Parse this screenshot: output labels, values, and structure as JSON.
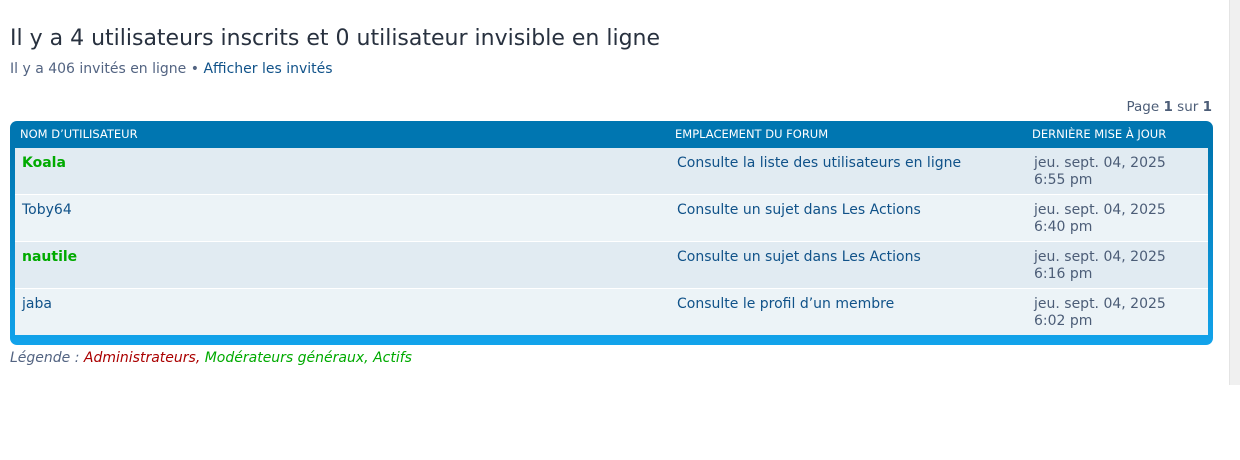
{
  "title": "Il y a 4 utilisateurs inscrits et 0 utilisateur invisible en ligne",
  "guests_text": "Il y a 406 invités en ligne",
  "separator": "•",
  "show_guests_link": "Afficher les invités",
  "pagination": {
    "prefix": "Page",
    "current": "1",
    "sep": "sur",
    "total": "1"
  },
  "table": {
    "headers": [
      "Nom d’utilisateur",
      "Emplacement du forum",
      "Dernière mise à jour"
    ],
    "rows": [
      {
        "user": "Koala",
        "group_color": "#00aa00",
        "location": "Consulte la liste des utilisateurs en ligne",
        "date": "jeu. sept. 04, 2025",
        "time": "6:55 pm"
      },
      {
        "user": "Toby64",
        "location": "Consulte un sujet dans Les Actions",
        "date": "jeu. sept. 04, 2025",
        "time": "6:40 pm"
      },
      {
        "user": "nautile",
        "group_color": "#00aa00",
        "location": "Consulte un sujet dans Les Actions",
        "date": "jeu. sept. 04, 2025",
        "time": "6:16 pm"
      },
      {
        "user": "jaba",
        "location": "Consulte le profil d’un membre",
        "date": "jeu. sept. 04, 2025",
        "time": "6:02 pm"
      }
    ]
  },
  "legend": {
    "label": "Légende :",
    "items": [
      "Administrateurs",
      ", ",
      "Modérateurs généraux",
      ", ",
      "Actifs"
    ],
    "colors": {
      "admin": "#aa0000",
      "mods": "#00aa00",
      "active": "#00aa00"
    }
  }
}
